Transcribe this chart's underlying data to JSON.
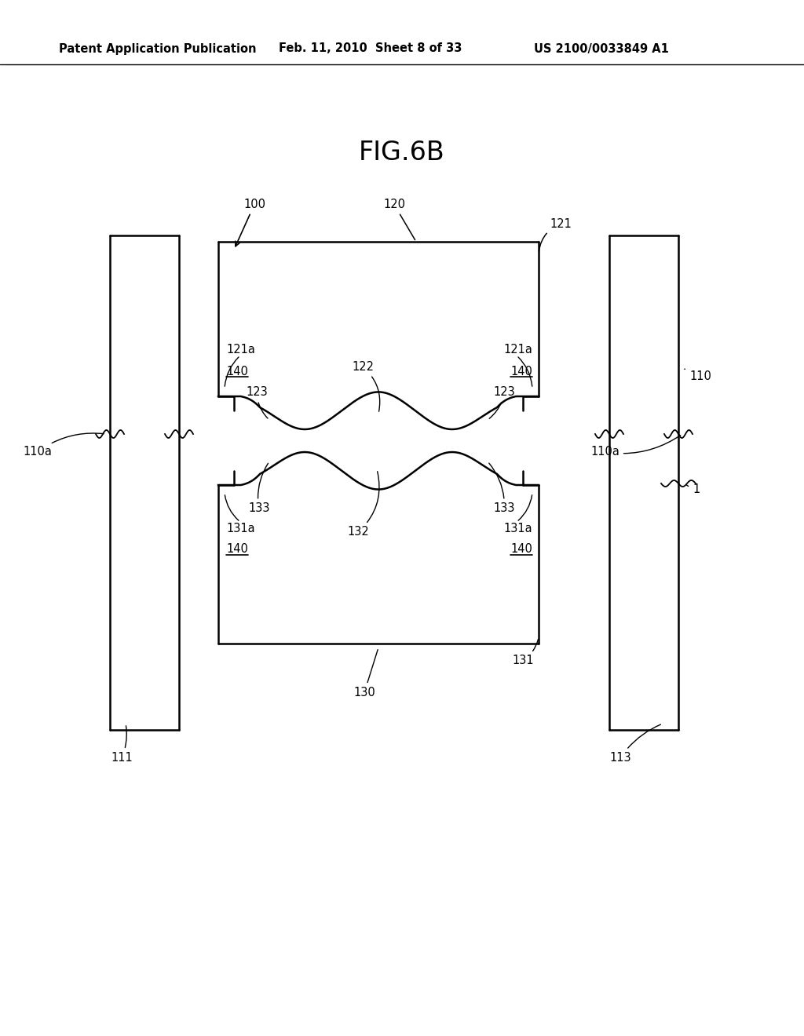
{
  "bg_color": "#ffffff",
  "line_color": "#000000",
  "header_left": "Patent Application Publication",
  "header_mid": "Feb. 11, 2010  Sheet 8 of 33",
  "header_right": "US 2100/0033849 A1",
  "fig_title": "FIG.6B"
}
